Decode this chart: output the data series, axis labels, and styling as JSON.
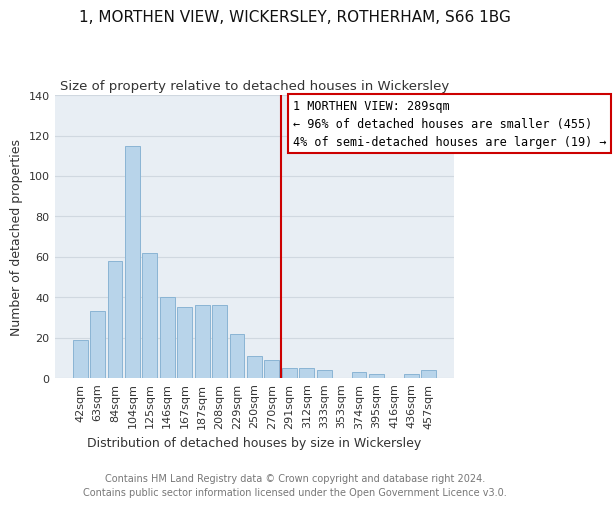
{
  "title": "1, MORTHEN VIEW, WICKERSLEY, ROTHERHAM, S66 1BG",
  "subtitle": "Size of property relative to detached houses in Wickersley",
  "xlabel": "Distribution of detached houses by size in Wickersley",
  "ylabel": "Number of detached properties",
  "bar_labels": [
    "42sqm",
    "63sqm",
    "84sqm",
    "104sqm",
    "125sqm",
    "146sqm",
    "167sqm",
    "187sqm",
    "208sqm",
    "229sqm",
    "250sqm",
    "270sqm",
    "291sqm",
    "312sqm",
    "333sqm",
    "353sqm",
    "374sqm",
    "395sqm",
    "416sqm",
    "436sqm",
    "457sqm"
  ],
  "bar_values": [
    19,
    33,
    58,
    115,
    62,
    40,
    35,
    36,
    36,
    22,
    11,
    9,
    5,
    5,
    4,
    0,
    3,
    2,
    0,
    2,
    4
  ],
  "bar_color": "#b8d4ea",
  "bar_edge_color": "#8ab4d4",
  "vline_x_index": 12,
  "vline_color": "#cc0000",
  "annotation_title": "1 MORTHEN VIEW: 289sqm",
  "annotation_line1": "← 96% of detached houses are smaller (455)",
  "annotation_line2": "4% of semi-detached houses are larger (19) →",
  "annotation_box_facecolor": "#ffffff",
  "annotation_box_edgecolor": "#cc0000",
  "footer_line1": "Contains HM Land Registry data © Crown copyright and database right 2024.",
  "footer_line2": "Contains public sector information licensed under the Open Government Licence v3.0.",
  "ylim": [
    0,
    140
  ],
  "plot_bg_color": "#e8eef4",
  "fig_bg_color": "#ffffff",
  "grid_color": "#d0d8e0",
  "title_fontsize": 11,
  "subtitle_fontsize": 9.5,
  "xlabel_fontsize": 9,
  "ylabel_fontsize": 9,
  "tick_fontsize": 8,
  "annot_fontsize": 8.5,
  "footer_fontsize": 7
}
